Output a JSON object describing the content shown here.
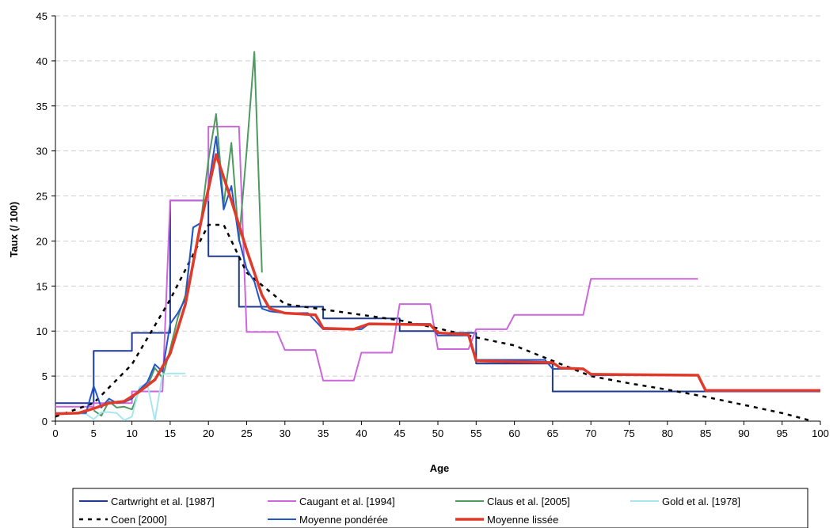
{
  "chart_data": {
    "type": "line",
    "xlabel": "Age",
    "ylabel": "Taux (/ 100)",
    "xlim": [
      0,
      100
    ],
    "ylim": [
      0,
      45
    ],
    "xticks": [
      0,
      5,
      10,
      15,
      20,
      25,
      30,
      35,
      40,
      45,
      50,
      55,
      60,
      65,
      70,
      75,
      80,
      85,
      90,
      95,
      100
    ],
    "yticks": [
      0,
      5,
      10,
      15,
      20,
      25,
      30,
      35,
      40,
      45
    ],
    "grid": "horizontal dashed",
    "legend_position": "bottom",
    "series": [
      {
        "name": "Cartwright et al. [1987]",
        "color": "#1f3a8f",
        "style": "solid",
        "points": [
          [
            0,
            2
          ],
          [
            5,
            2
          ],
          [
            5,
            7.8
          ],
          [
            10,
            7.8
          ],
          [
            10,
            9.8
          ],
          [
            15,
            9.8
          ],
          [
            15,
            24.5
          ],
          [
            20,
            24.5
          ],
          [
            20,
            18.3
          ],
          [
            24,
            18.3
          ],
          [
            24,
            12.7
          ],
          [
            35,
            12.7
          ],
          [
            35,
            11.4
          ],
          [
            45,
            11.4
          ],
          [
            45,
            10
          ],
          [
            50,
            10
          ],
          [
            50,
            9.8
          ],
          [
            55,
            9.8
          ],
          [
            55,
            6.4
          ],
          [
            65,
            6.4
          ],
          [
            65,
            3.3
          ],
          [
            85,
            3.3
          ]
        ]
      },
      {
        "name": "Caugant et al. [1994]",
        "color": "#cc66dd",
        "style": "solid",
        "points": [
          [
            0,
            1.6
          ],
          [
            5,
            1.6
          ],
          [
            5,
            2
          ],
          [
            10,
            2
          ],
          [
            10,
            3.3
          ],
          [
            14,
            3.3
          ],
          [
            15,
            24.5
          ],
          [
            20,
            24.5
          ],
          [
            20,
            32.7
          ],
          [
            24,
            32.7
          ],
          [
            25,
            9.9
          ],
          [
            29,
            9.9
          ],
          [
            30,
            7.9
          ],
          [
            34,
            7.9
          ],
          [
            35,
            4.5
          ],
          [
            39,
            4.5
          ],
          [
            40,
            7.6
          ],
          [
            44,
            7.6
          ],
          [
            45,
            13
          ],
          [
            49,
            13
          ],
          [
            50,
            8
          ],
          [
            54,
            8
          ],
          [
            55,
            10.2
          ],
          [
            59,
            10.2
          ],
          [
            60,
            11.8
          ],
          [
            69,
            11.8
          ],
          [
            70,
            15.8
          ],
          [
            84,
            15.8
          ]
        ]
      },
      {
        "name": "Claus et al. [2005]",
        "color": "#4e9a60",
        "style": "solid",
        "points": [
          [
            5,
            1.2
          ],
          [
            6,
            0.6
          ],
          [
            7,
            2.2
          ],
          [
            8,
            1.5
          ],
          [
            9,
            1.6
          ],
          [
            10,
            1.3
          ],
          [
            11,
            3.5
          ],
          [
            12,
            3.8
          ],
          [
            13,
            5.9
          ],
          [
            14,
            4.8
          ],
          [
            15,
            8
          ],
          [
            16,
            11.5
          ],
          [
            17,
            14
          ],
          [
            18,
            21.5
          ],
          [
            19,
            22
          ],
          [
            20,
            29
          ],
          [
            21,
            34.1
          ],
          [
            22,
            24
          ],
          [
            23,
            30.9
          ],
          [
            24,
            20
          ],
          [
            25,
            30
          ],
          [
            26,
            41
          ],
          [
            27,
            16.5
          ]
        ]
      },
      {
        "name": "Gold et al. [1978]",
        "color": "#a8e6ef",
        "style": "solid",
        "points": [
          [
            0,
            0.8
          ],
          [
            4,
            0.8
          ],
          [
            5,
            0.2
          ],
          [
            6,
            1
          ],
          [
            7,
            1
          ],
          [
            8,
            0.9
          ],
          [
            9,
            0.1
          ],
          [
            10,
            0.5
          ],
          [
            11,
            3.8
          ],
          [
            12,
            4.2
          ],
          [
            13,
            0.1
          ],
          [
            14,
            5.2
          ],
          [
            15,
            5.3
          ],
          [
            17,
            5.3
          ]
        ]
      },
      {
        "name": "Coen [2000]",
        "color": "#000000",
        "style": "dotted",
        "points": [
          [
            0,
            0.5
          ],
          [
            5,
            2
          ],
          [
            10,
            6.3
          ],
          [
            15,
            13.5
          ],
          [
            20,
            21.8
          ],
          [
            22,
            21.8
          ],
          [
            25,
            16.5
          ],
          [
            30,
            13
          ],
          [
            35,
            12.4
          ],
          [
            40,
            11.8
          ],
          [
            45,
            11.2
          ],
          [
            50,
            10.3
          ],
          [
            55,
            9.3
          ],
          [
            60,
            8.4
          ],
          [
            65,
            6.7
          ],
          [
            70,
            5
          ],
          [
            75,
            4.2
          ],
          [
            80,
            3.5
          ],
          [
            85,
            2.7
          ],
          [
            90,
            1.8
          ],
          [
            95,
            0.9
          ],
          [
            99,
            0
          ]
        ]
      },
      {
        "name": "Moyenne pondérée",
        "color": "#2255cc",
        "style": "solid",
        "points": [
          [
            0,
            0.9
          ],
          [
            4,
            0.9
          ],
          [
            5,
            3.9
          ],
          [
            6,
            1.5
          ],
          [
            7,
            2.5
          ],
          [
            8,
            2
          ],
          [
            9,
            2.1
          ],
          [
            10,
            2.5
          ],
          [
            11,
            3.5
          ],
          [
            12,
            4.3
          ],
          [
            13,
            6.3
          ],
          [
            14,
            5.5
          ],
          [
            15,
            10.8
          ],
          [
            16,
            12
          ],
          [
            17,
            13.6
          ],
          [
            18,
            21.5
          ],
          [
            19,
            22
          ],
          [
            20,
            26
          ],
          [
            21,
            31.6
          ],
          [
            22,
            23.5
          ],
          [
            23,
            26.1
          ],
          [
            24,
            20.2
          ],
          [
            25,
            16.9
          ],
          [
            26,
            15.5
          ],
          [
            27,
            12.5
          ],
          [
            28,
            12.2
          ],
          [
            30,
            12
          ],
          [
            33,
            12
          ],
          [
            35,
            10.2
          ],
          [
            40,
            10.2
          ],
          [
            41,
            10.8
          ],
          [
            45,
            10.8
          ],
          [
            49,
            10.8
          ],
          [
            50,
            9.5
          ],
          [
            54,
            9.5
          ],
          [
            55,
            6.8
          ],
          [
            64,
            6.8
          ],
          [
            65,
            5.8
          ],
          [
            69,
            5.8
          ],
          [
            70,
            5.1
          ],
          [
            84,
            5.1
          ],
          [
            85,
            3.3
          ],
          [
            100,
            3.3
          ]
        ]
      },
      {
        "name": "Moyenne lissée",
        "color": "#e03a2a",
        "style": "thick",
        "points": [
          [
            0,
            0.8
          ],
          [
            3,
            0.9
          ],
          [
            5,
            1.4
          ],
          [
            7,
            2
          ],
          [
            9,
            2.2
          ],
          [
            11,
            3.3
          ],
          [
            13,
            4.6
          ],
          [
            15,
            7.5
          ],
          [
            17,
            13
          ],
          [
            19,
            22
          ],
          [
            21,
            29.6
          ],
          [
            23,
            24.5
          ],
          [
            25,
            19
          ],
          [
            27,
            14
          ],
          [
            28,
            12.5
          ],
          [
            30,
            12
          ],
          [
            34,
            11.8
          ],
          [
            35,
            10.3
          ],
          [
            39,
            10.2
          ],
          [
            41,
            10.8
          ],
          [
            49,
            10.7
          ],
          [
            50,
            9.8
          ],
          [
            54,
            9.6
          ],
          [
            55,
            6.7
          ],
          [
            65,
            6.5
          ],
          [
            66,
            5.9
          ],
          [
            69,
            5.8
          ],
          [
            70,
            5.2
          ],
          [
            84,
            5.1
          ],
          [
            85,
            3.4
          ],
          [
            100,
            3.4
          ]
        ]
      }
    ]
  }
}
